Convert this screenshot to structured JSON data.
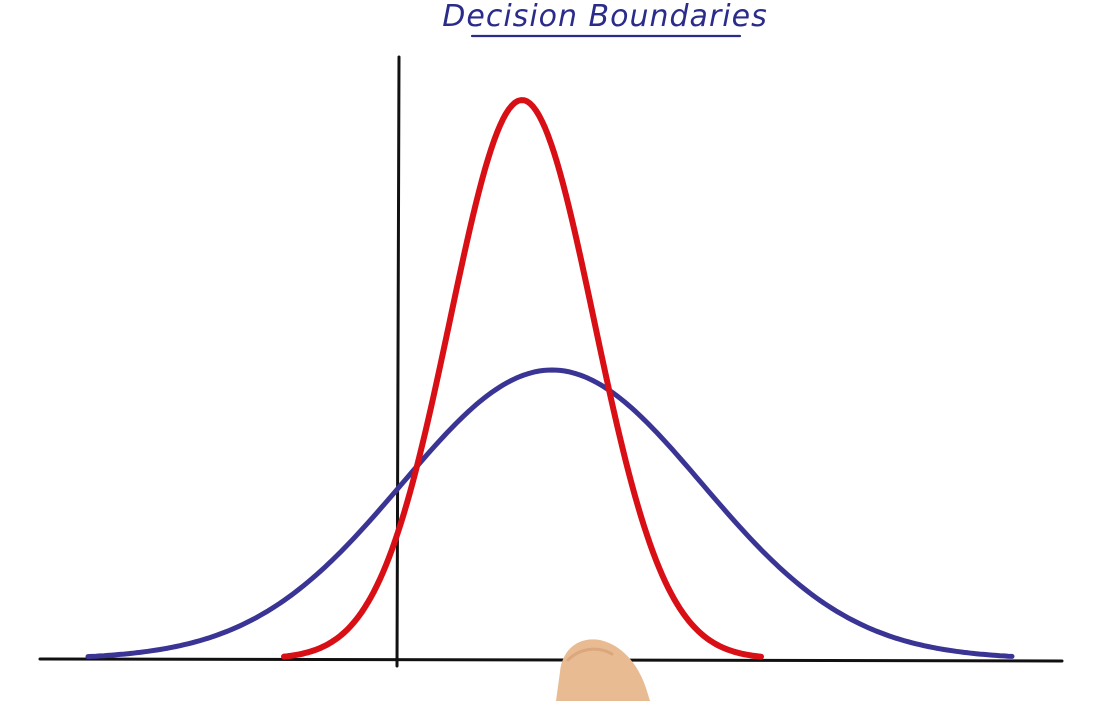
{
  "diagram": {
    "title": "Decision Boundaries",
    "colors": {
      "ink": "#111111",
      "title": "#2b2c8a",
      "narrow_curve": "#d90f16",
      "wide_curve": "#3a3495",
      "hand": "#e8bb92"
    },
    "curves": [
      {
        "id": "narrow",
        "shape": "gaussian",
        "color_key": "narrow_curve"
      },
      {
        "id": "wide",
        "shape": "gaussian",
        "color_key": "wide_curve"
      }
    ],
    "icons": {
      "hand": "hand-icon"
    }
  }
}
